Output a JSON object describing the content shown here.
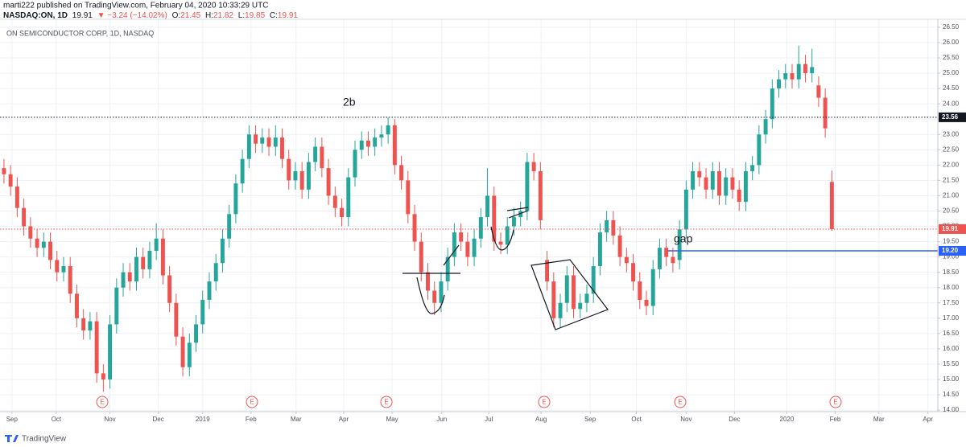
{
  "header": {
    "author_line": "marti222 published on TradingView.com, February 04, 2020 10:33:29 UTC",
    "symbol": "NASDAQ:ON, 1D",
    "change": "▼ −3.24 (−14.02%)",
    "ohlc_labels": [
      "O:",
      "H:",
      "L:",
      "C:"
    ]
  },
  "footer": {
    "brand": "TradingView"
  },
  "chart_data": {
    "type": "candlestick",
    "title": "ON SEMICONDUCTOR CORP, 1D, NASDAQ",
    "up_color": "#26a69a",
    "down_color": "#ef5350",
    "grid": true,
    "open": [
      21.9,
      21.7,
      21.3,
      20.6,
      20.0,
      19.6,
      19.3,
      19.5,
      18.9,
      18.5,
      18.7,
      17.8,
      17.0,
      16.6,
      16.9,
      15.2,
      15.0,
      16.8,
      18.0,
      18.5,
      18.2,
      19.0,
      18.6,
      19.2,
      19.6,
      18.4,
      17.5,
      16.4,
      15.4,
      16.2,
      16.8,
      17.6,
      18.2,
      18.8,
      19.6,
      20.4,
      21.4,
      22.2,
      23.0,
      22.7,
      22.9,
      22.6,
      22.9,
      22.2,
      21.5,
      21.8,
      21.2,
      22.1,
      22.6,
      21.9,
      21.0,
      20.6,
      20.3,
      21.6,
      22.5,
      22.8,
      22.6,
      22.9,
      23.0,
      23.3,
      22.0,
      21.5,
      20.4,
      19.5,
      18.5,
      17.9,
      17.5,
      18.2,
      19.0,
      19.8,
      19.5,
      19.0,
      19.6,
      20.3,
      21.0,
      19.5,
      19.4,
      20.0,
      20.3,
      20.5,
      22.1,
      21.8,
      18.9,
      18.2,
      17.0,
      17.5,
      18.4,
      17.3,
      17.5,
      17.8,
      18.7,
      19.8,
      20.2,
      19.7,
      19.0,
      18.8,
      18.2,
      17.6,
      17.4,
      18.6,
      19.3,
      19.0,
      18.9,
      19.9,
      21.2,
      21.8,
      21.6,
      21.2,
      21.8,
      21.0,
      21.6,
      21.2,
      20.8,
      21.8,
      22.0,
      23.0,
      23.5,
      24.5,
      24.8,
      25.0,
      24.8,
      25.3,
      25.0,
      24.6,
      24.2,
      21.45
    ],
    "high": [
      22.2,
      22.0,
      21.6,
      20.9,
      20.3,
      19.9,
      19.8,
      19.8,
      19.2,
      19.0,
      19.0,
      18.1,
      17.3,
      17.2,
      17.2,
      15.5,
      17.1,
      18.3,
      18.8,
      18.8,
      19.3,
      19.3,
      19.5,
      20.1,
      19.9,
      18.7,
      17.8,
      16.7,
      16.5,
      17.1,
      17.9,
      18.5,
      19.1,
      19.9,
      20.7,
      21.7,
      22.5,
      23.3,
      23.3,
      23.2,
      23.2,
      23.3,
      23.2,
      22.5,
      22.1,
      22.1,
      22.4,
      22.9,
      22.9,
      22.2,
      21.3,
      20.9,
      21.9,
      22.8,
      23.1,
      23.1,
      23.2,
      23.3,
      23.56,
      23.5,
      22.3,
      21.8,
      20.7,
      19.8,
      18.8,
      18.2,
      18.5,
      19.3,
      20.1,
      20.1,
      19.8,
      19.9,
      20.6,
      21.9,
      21.3,
      19.8,
      20.3,
      20.6,
      20.8,
      22.4,
      22.4,
      22.1,
      19.2,
      18.5,
      17.8,
      18.7,
      18.7,
      17.8,
      18.1,
      19.0,
      20.1,
      20.5,
      20.5,
      20.0,
      19.3,
      19.1,
      18.5,
      17.9,
      18.9,
      19.6,
      19.6,
      19.3,
      20.2,
      21.5,
      22.1,
      22.1,
      21.9,
      22.1,
      22.1,
      21.9,
      21.9,
      21.5,
      22.1,
      22.3,
      23.3,
      23.8,
      24.8,
      25.1,
      25.3,
      25.3,
      25.9,
      25.6,
      25.8,
      24.9,
      24.5,
      21.82
    ],
    "low": [
      21.4,
      21.0,
      20.3,
      19.7,
      19.3,
      19.0,
      19.0,
      18.6,
      18.2,
      18.2,
      17.5,
      16.7,
      16.3,
      16.3,
      14.9,
      14.6,
      14.7,
      16.5,
      17.7,
      17.9,
      17.9,
      18.3,
      18.3,
      18.9,
      18.1,
      17.2,
      16.1,
      15.1,
      15.1,
      15.9,
      16.5,
      17.3,
      17.9,
      18.5,
      19.3,
      20.1,
      21.1,
      21.9,
      22.4,
      22.4,
      22.3,
      22.3,
      21.9,
      21.2,
      21.2,
      20.9,
      20.9,
      21.8,
      21.6,
      20.7,
      20.3,
      20.0,
      20.0,
      21.3,
      22.2,
      22.3,
      22.3,
      22.6,
      22.7,
      21.7,
      21.2,
      20.1,
      19.2,
      18.2,
      17.6,
      17.1,
      17.2,
      17.9,
      18.7,
      19.2,
      18.7,
      18.7,
      19.3,
      20.0,
      19.2,
      19.1,
      19.1,
      19.7,
      20.0,
      20.2,
      21.5,
      19.9,
      17.9,
      16.7,
      16.7,
      17.2,
      17.0,
      17.0,
      17.2,
      17.5,
      18.4,
      19.5,
      19.4,
      18.7,
      18.5,
      17.9,
      17.3,
      17.1,
      17.1,
      18.3,
      18.7,
      18.5,
      18.6,
      19.6,
      20.9,
      21.3,
      20.9,
      20.9,
      20.7,
      20.7,
      20.9,
      20.5,
      20.5,
      21.5,
      21.7,
      22.7,
      23.2,
      24.2,
      24.5,
      24.5,
      24.5,
      24.7,
      24.7,
      23.9,
      22.9,
      19.85
    ],
    "close": [
      21.7,
      21.3,
      20.6,
      20.0,
      19.6,
      19.3,
      19.5,
      18.9,
      18.5,
      18.7,
      17.8,
      17.0,
      16.6,
      16.9,
      15.2,
      15.0,
      16.8,
      18.0,
      18.5,
      18.2,
      19.0,
      18.6,
      19.2,
      19.6,
      18.4,
      17.5,
      16.4,
      15.4,
      16.2,
      16.8,
      17.6,
      18.2,
      18.8,
      19.6,
      20.4,
      21.4,
      22.2,
      23.0,
      22.7,
      22.9,
      22.6,
      22.9,
      22.2,
      21.5,
      21.8,
      21.2,
      22.1,
      22.6,
      21.9,
      21.0,
      20.6,
      20.3,
      21.6,
      22.5,
      22.8,
      22.6,
      22.9,
      23.0,
      23.3,
      22.0,
      21.5,
      20.4,
      19.5,
      18.5,
      17.9,
      17.5,
      18.2,
      19.0,
      19.8,
      19.5,
      19.0,
      19.6,
      20.3,
      21.0,
      19.5,
      19.4,
      20.0,
      20.3,
      20.5,
      22.1,
      21.8,
      20.2,
      18.2,
      17.0,
      17.5,
      18.4,
      17.3,
      17.5,
      17.8,
      18.7,
      19.8,
      20.2,
      19.7,
      19.0,
      18.8,
      18.2,
      17.6,
      17.4,
      18.6,
      19.3,
      19.0,
      18.8,
      19.9,
      21.2,
      21.8,
      21.6,
      21.2,
      21.8,
      21.0,
      21.6,
      21.2,
      20.8,
      21.8,
      22.0,
      23.0,
      23.5,
      24.5,
      24.8,
      25.0,
      24.8,
      25.3,
      25.0,
      25.2,
      24.2,
      23.2,
      19.91
    ],
    "xlim": [
      -0.6,
      141
    ],
    "xticks": [
      {
        "value": 1.2,
        "label": "Sep"
      },
      {
        "value": 7.9,
        "label": "Oct"
      },
      {
        "value": 16.0,
        "label": "Nov"
      },
      {
        "value": 23.3,
        "label": "Dec"
      },
      {
        "value": 30.0,
        "label": "2019"
      },
      {
        "value": 37.3,
        "label": "Feb"
      },
      {
        "value": 44.1,
        "label": "Mar"
      },
      {
        "value": 51.3,
        "label": "Apr"
      },
      {
        "value": 58.6,
        "label": "May"
      },
      {
        "value": 66.1,
        "label": "Jun"
      },
      {
        "value": 73.2,
        "label": "Jul"
      },
      {
        "value": 81.1,
        "label": "Aug"
      },
      {
        "value": 88.5,
        "label": "Sep"
      },
      {
        "value": 95.5,
        "label": "Oct"
      },
      {
        "value": 103.0,
        "label": "Nov"
      },
      {
        "value": 110.3,
        "label": "Dec"
      },
      {
        "value": 118.2,
        "label": "2020"
      },
      {
        "value": 125.5,
        "label": "Feb"
      },
      {
        "value": 132.1,
        "label": "Mar"
      },
      {
        "value": 139.5,
        "label": "Apr"
      }
    ],
    "ylim": [
      13.95,
      26.76
    ],
    "yticks": [
      {
        "value": 14,
        "label": "14.00"
      },
      {
        "value": 14.5,
        "label": "14.50"
      },
      {
        "value": 15,
        "label": "15.00"
      },
      {
        "value": 15.5,
        "label": "15.50"
      },
      {
        "value": 16,
        "label": "16.00"
      },
      {
        "value": 16.5,
        "label": "16.50"
      },
      {
        "value": 17,
        "label": "17.00"
      },
      {
        "value": 17.5,
        "label": "17.50"
      },
      {
        "value": 18,
        "label": "18.00"
      },
      {
        "value": 18.5,
        "label": "18.50"
      },
      {
        "value": 19,
        "label": "19.00"
      },
      {
        "value": 19.5,
        "label": "19.50"
      },
      {
        "value": 20,
        "label": "20.00"
      },
      {
        "value": 20.5,
        "label": "20.50"
      },
      {
        "value": 21,
        "label": "21.00"
      },
      {
        "value": 21.5,
        "label": "21.50"
      },
      {
        "value": 22,
        "label": "22.00"
      },
      {
        "value": 22.5,
        "label": "22.50"
      },
      {
        "value": 23,
        "label": "23.00"
      },
      {
        "value": 23.5,
        "label": "23.50"
      },
      {
        "value": 24,
        "label": "24.00"
      },
      {
        "value": 24.5,
        "label": "24.50"
      },
      {
        "value": 25,
        "label": "25.00"
      },
      {
        "value": 25.5,
        "label": "25.50"
      },
      {
        "value": 26,
        "label": "26.00"
      },
      {
        "value": 26.5,
        "label": "26.50"
      }
    ],
    "hlines": [
      {
        "value": 23.56,
        "color": "#131722",
        "style": "dotted"
      },
      {
        "value": 19.91,
        "color": "#ef5350",
        "style": "dotted"
      },
      {
        "value": 19.2,
        "label": "19.20",
        "color": "#2962ff",
        "style": "solid",
        "x_start": 100.2
      }
    ],
    "annotations": [
      "2b",
      "gap"
    ],
    "events": [
      "E",
      "E",
      "E",
      "E",
      "E",
      "E"
    ]
  }
}
